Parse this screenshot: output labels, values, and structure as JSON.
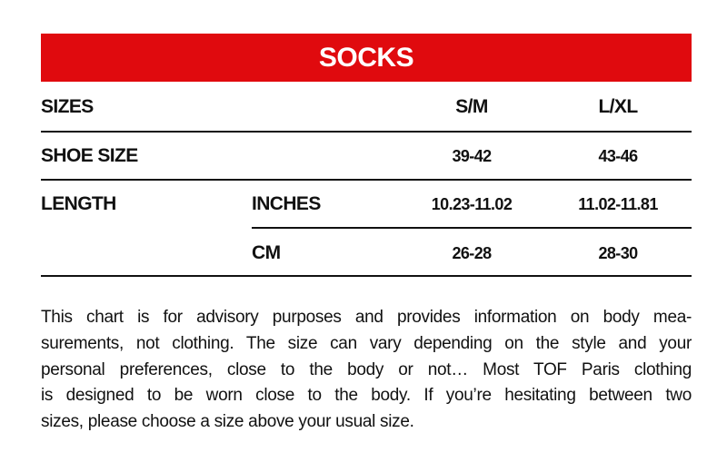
{
  "title": "SOCKS",
  "colors": {
    "banner": "#e00a0e",
    "text": "#111111"
  },
  "table": {
    "header": {
      "label": "SIZES",
      "columns": [
        "S/M",
        "L/XL"
      ]
    },
    "rows": [
      {
        "label": "SHOE SIZE",
        "sublabel": "",
        "values": [
          "39-42",
          "43-46"
        ]
      },
      {
        "label": "LENGTH",
        "sublabel": "INCHES",
        "values": [
          "10.23-11.02",
          "11.02-11.81"
        ]
      },
      {
        "label": "",
        "sublabel": "CM",
        "values": [
          "26-28",
          "28-30"
        ]
      }
    ]
  },
  "note_lines": [
    "This chart is for advisory purposes and provides information on body mea-",
    "surements, not clothing. The size can vary depending on the style and your",
    "personal preferences, close to the body or not… Most TOF Paris clothing",
    "is designed to be worn close to the body. If you’re hesitating between two",
    "sizes, please choose a size above your usual size."
  ]
}
